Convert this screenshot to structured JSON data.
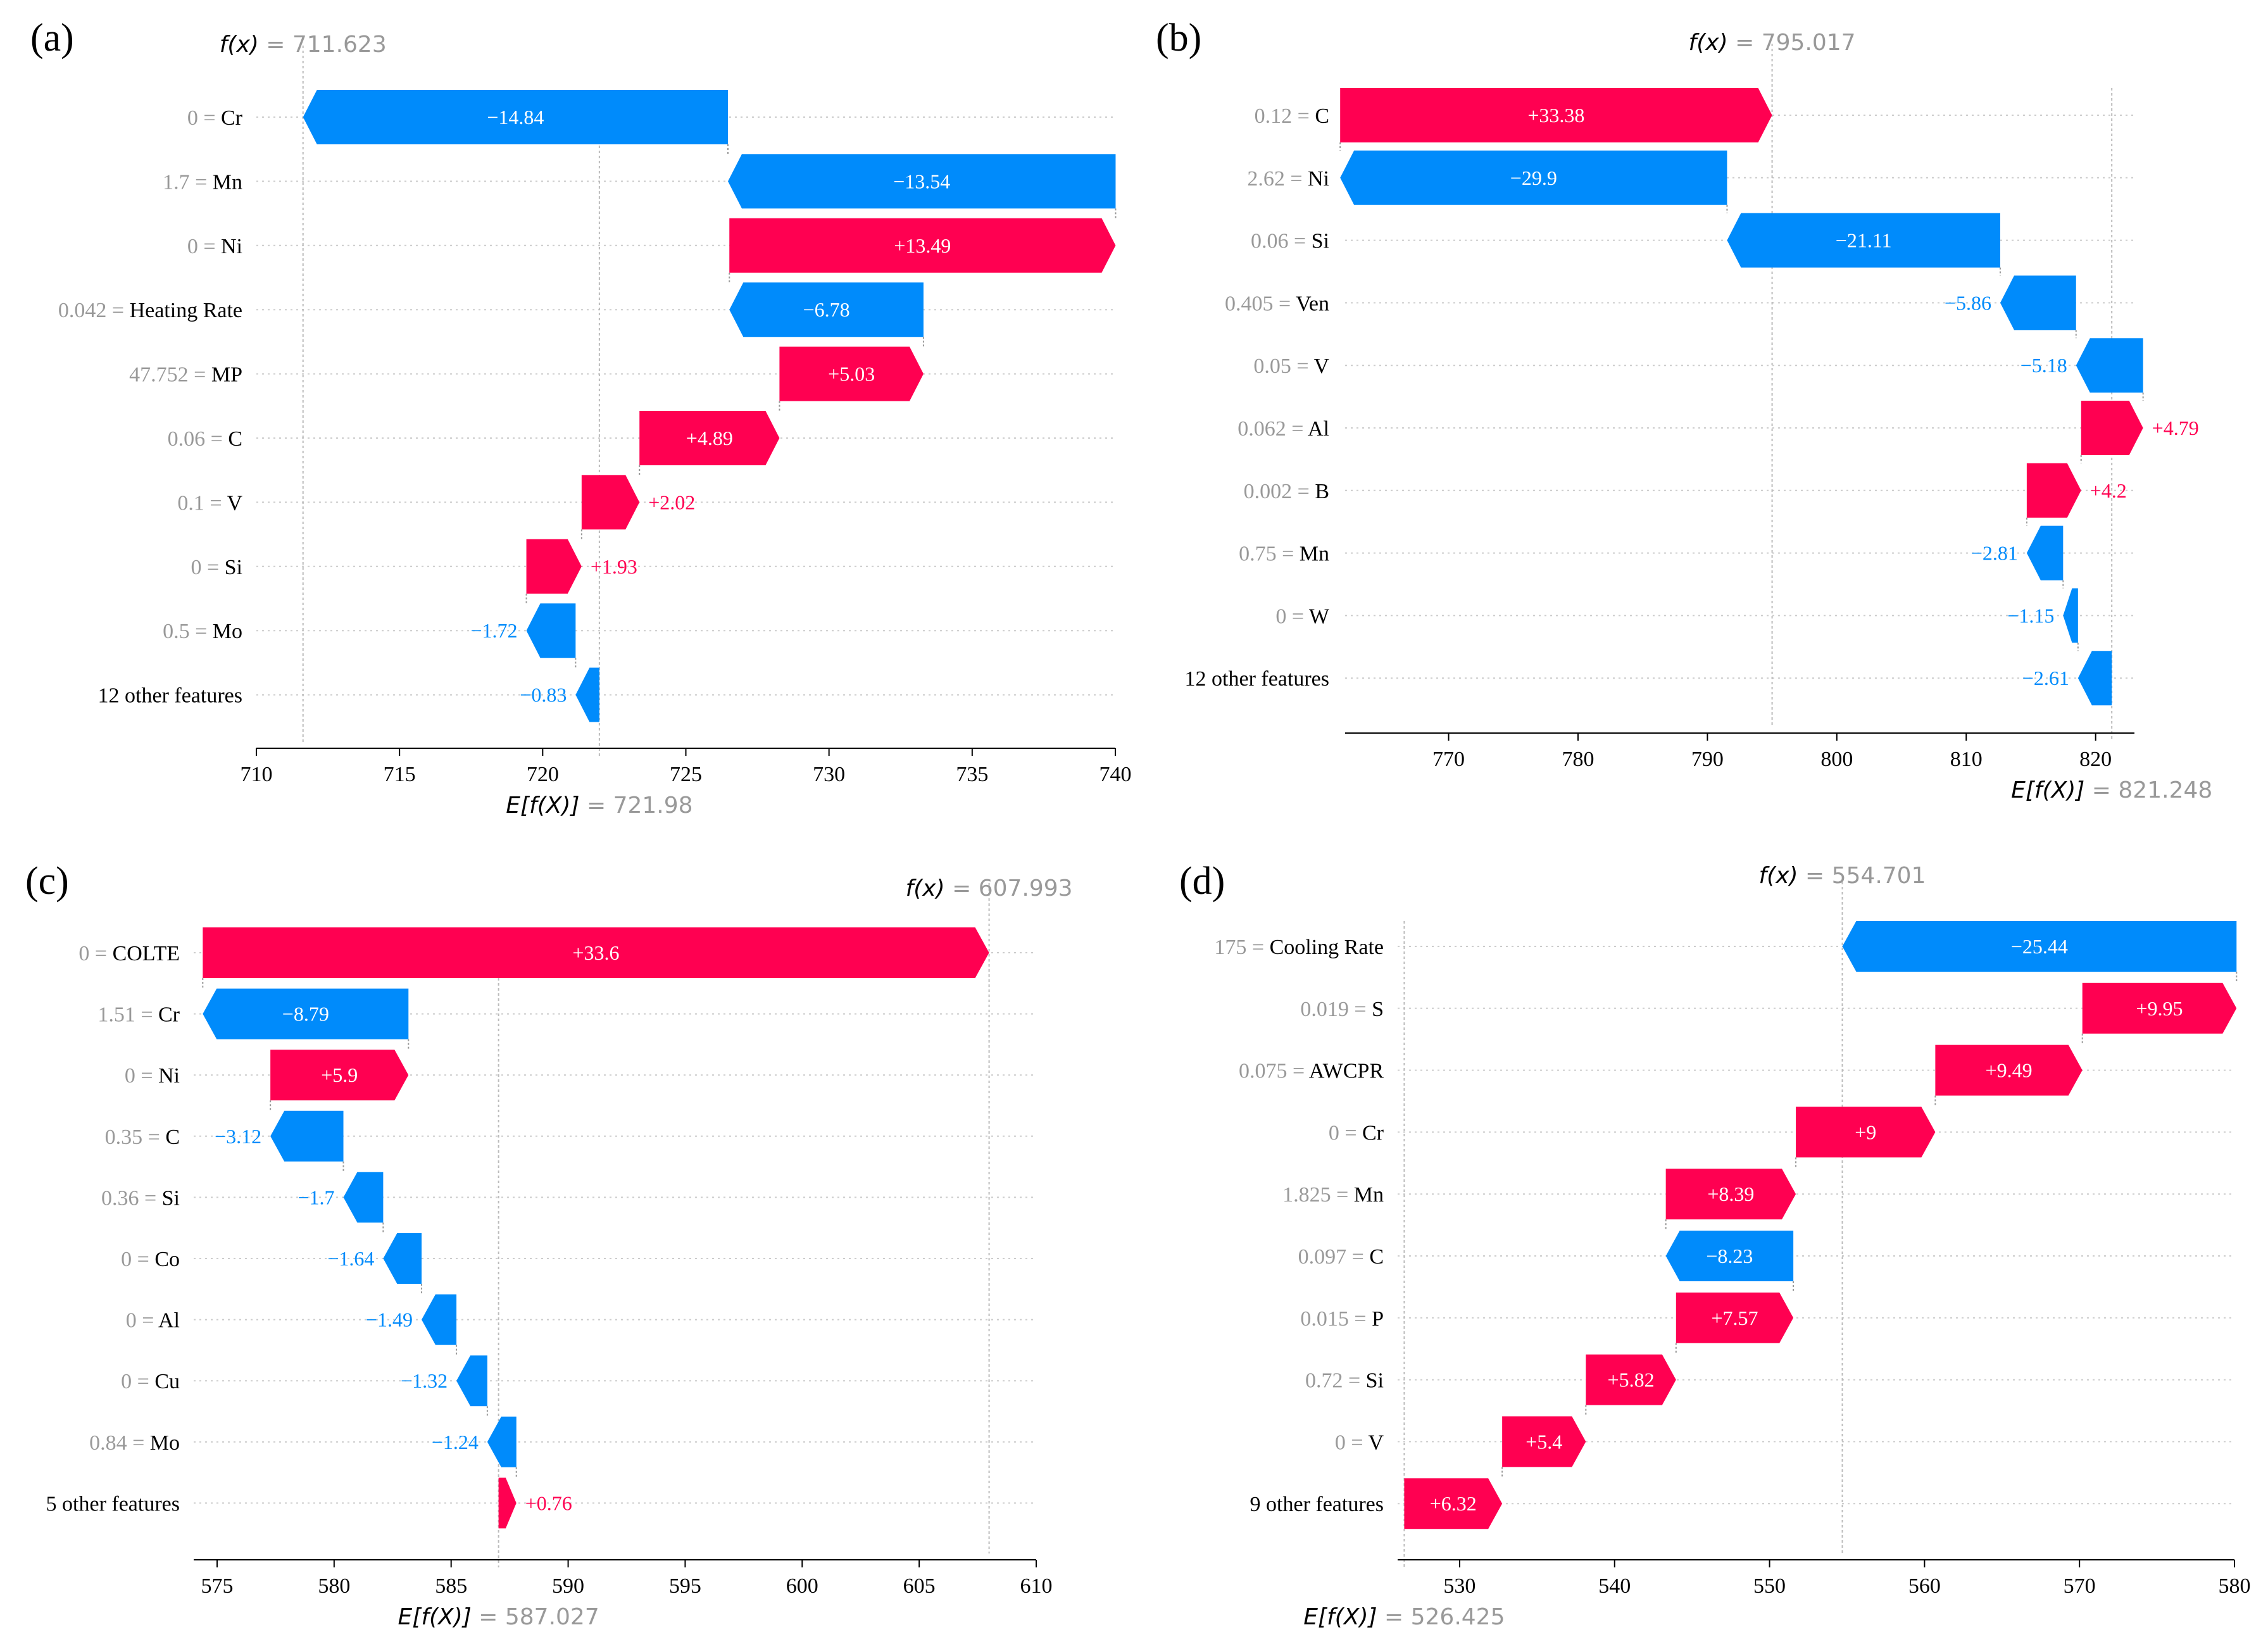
{
  "chart_data": [
    {
      "type": "waterfall",
      "panel_label": "(a)",
      "fx_prefix": "f(x)",
      "fx_value": "711.623",
      "efx_prefix": "E[f(X)]",
      "efx_value": "721.98",
      "base_value": 721.98,
      "xlim": [
        710,
        740
      ],
      "ticks": [
        710,
        715,
        720,
        725,
        730,
        735,
        740
      ],
      "features": [
        {
          "value": "0",
          "name": "Cr",
          "shap": -14.84,
          "label": "−14.84"
        },
        {
          "value": "1.7",
          "name": "Mn",
          "shap": -13.54,
          "label": "−13.54"
        },
        {
          "value": "0",
          "name": "Ni",
          "shap": 13.49,
          "label": "+13.49"
        },
        {
          "value": "0.042",
          "name": "Heating Rate",
          "shap": -6.78,
          "label": "−6.78"
        },
        {
          "value": "47.752",
          "name": "MP",
          "shap": 5.03,
          "label": "+5.03"
        },
        {
          "value": "0.06",
          "name": "C",
          "shap": 4.89,
          "label": "+4.89"
        },
        {
          "value": "0.1",
          "name": "V",
          "shap": 2.02,
          "label": "+2.02"
        },
        {
          "value": "0",
          "name": "Si",
          "shap": 1.93,
          "label": "+1.93"
        },
        {
          "value": "0.5",
          "name": "Mo",
          "shap": -1.72,
          "label": "−1.72"
        },
        {
          "value": "",
          "name": "12 other features",
          "shap": -0.83,
          "label": "−0.83"
        }
      ]
    },
    {
      "type": "waterfall",
      "panel_label": "(b)",
      "fx_prefix": "f(x)",
      "fx_value": "795.017",
      "efx_prefix": "E[f(X)]",
      "efx_value": "821.248",
      "base_value": 821.248,
      "xlim": [
        762,
        823
      ],
      "ticks": [
        770,
        780,
        790,
        800,
        810,
        820
      ],
      "features": [
        {
          "value": "0.12",
          "name": "C",
          "shap": 33.38,
          "label": "+33.38"
        },
        {
          "value": "2.62",
          "name": "Ni",
          "shap": -29.9,
          "label": "−29.9"
        },
        {
          "value": "0.06",
          "name": "Si",
          "shap": -21.11,
          "label": "−21.11"
        },
        {
          "value": "0.405",
          "name": "Ven",
          "shap": -5.86,
          "label": "−5.86"
        },
        {
          "value": "0.05",
          "name": "V",
          "shap": -5.18,
          "label": "−5.18"
        },
        {
          "value": "0.062",
          "name": "Al",
          "shap": 4.79,
          "label": "+4.79"
        },
        {
          "value": "0.002",
          "name": "B",
          "shap": 4.2,
          "label": "+4.2"
        },
        {
          "value": "0.75",
          "name": "Mn",
          "shap": -2.81,
          "label": "−2.81"
        },
        {
          "value": "0",
          "name": "W",
          "shap": -1.15,
          "label": "−1.15"
        },
        {
          "value": "",
          "name": "12 other features",
          "shap": -2.61,
          "label": "−2.61"
        }
      ]
    },
    {
      "type": "waterfall",
      "panel_label": "(c)",
      "fx_prefix": "f(x)",
      "fx_value": "607.993",
      "efx_prefix": "E[f(X)]",
      "efx_value": "587.027",
      "base_value": 587.027,
      "xlim": [
        574,
        610
      ],
      "ticks": [
        575,
        580,
        585,
        590,
        595,
        600,
        605,
        610
      ],
      "features": [
        {
          "value": "0",
          "name": "COLTE",
          "shap": 33.6,
          "label": "+33.6"
        },
        {
          "value": "1.51",
          "name": "Cr",
          "shap": -8.79,
          "label": "−8.79"
        },
        {
          "value": "0",
          "name": "Ni",
          "shap": 5.9,
          "label": "+5.9"
        },
        {
          "value": "0.35",
          "name": "C",
          "shap": -3.12,
          "label": "−3.12"
        },
        {
          "value": "0.36",
          "name": "Si",
          "shap": -1.7,
          "label": "−1.7"
        },
        {
          "value": "0",
          "name": "Co",
          "shap": -1.64,
          "label": "−1.64"
        },
        {
          "value": "0",
          "name": "Al",
          "shap": -1.49,
          "label": "−1.49"
        },
        {
          "value": "0",
          "name": "Cu",
          "shap": -1.32,
          "label": "−1.32"
        },
        {
          "value": "0.84",
          "name": "Mo",
          "shap": -1.24,
          "label": "−1.24"
        },
        {
          "value": "",
          "name": "5 other features",
          "shap": 0.76,
          "label": "+0.76"
        }
      ]
    },
    {
      "type": "waterfall",
      "panel_label": "(d)",
      "fx_prefix": "f(x)",
      "fx_value": "554.701",
      "efx_prefix": "E[f(X)]",
      "efx_value": "526.425",
      "base_value": 526.425,
      "xlim": [
        526,
        580
      ],
      "ticks": [
        530,
        540,
        550,
        560,
        570,
        580
      ],
      "features": [
        {
          "value": "175",
          "name": "Cooling Rate",
          "shap": -25.44,
          "label": "−25.44"
        },
        {
          "value": "0.019",
          "name": "S",
          "shap": 9.95,
          "label": "+9.95"
        },
        {
          "value": "0.075",
          "name": "AWCPR",
          "shap": 9.49,
          "label": "+9.49"
        },
        {
          "value": "0",
          "name": "Cr",
          "shap": 9,
          "label": "+9"
        },
        {
          "value": "1.825",
          "name": "Mn",
          "shap": 8.39,
          "label": "+8.39"
        },
        {
          "value": "0.097",
          "name": "C",
          "shap": -8.23,
          "label": "−8.23"
        },
        {
          "value": "0.015",
          "name": "P",
          "shap": 7.57,
          "label": "+7.57"
        },
        {
          "value": "0.72",
          "name": "Si",
          "shap": 5.82,
          "label": "+5.82"
        },
        {
          "value": "0",
          "name": "V",
          "shap": 5.4,
          "label": "+5.4"
        },
        {
          "value": "",
          "name": "9 other features",
          "shap": 6.32,
          "label": "+6.32"
        }
      ]
    }
  ],
  "colors": {
    "positive": "#ff0051",
    "negative": "#008bfb",
    "feature_value_text": "#999999",
    "feature_name_text": "#000000",
    "axis": "#000000",
    "grid": "#cccccc",
    "expectation_text": "#999999"
  }
}
